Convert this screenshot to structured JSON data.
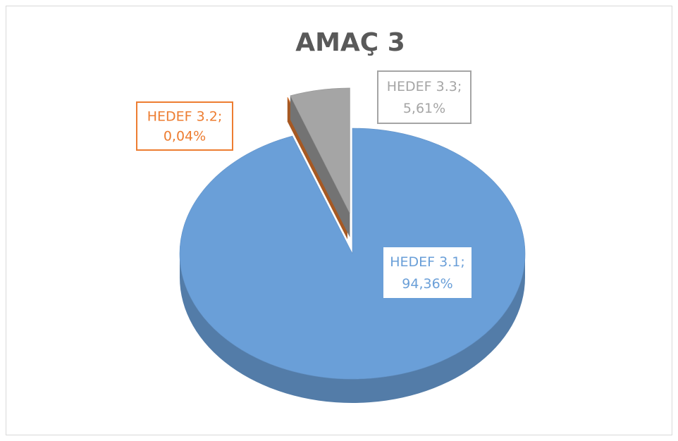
{
  "chart_data": {
    "type": "pie",
    "title": "AMAÇ 3",
    "categories": [
      "HEDEF 3.1",
      "HEDEF 3.2",
      "HEDEF 3.3"
    ],
    "separator": ";",
    "values": [
      94.36,
      0.04,
      5.61
    ],
    "value_labels": [
      "94,36%",
      "0,04%",
      "5,61%"
    ],
    "colors": [
      "#6a9fd8",
      "#ed7d31",
      "#a5a5a5"
    ],
    "exploded": [
      false,
      true,
      true
    ],
    "three_d": true
  }
}
